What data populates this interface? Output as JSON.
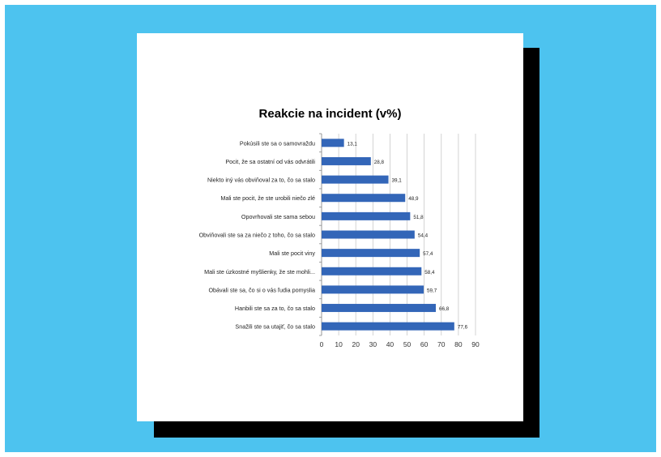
{
  "chart_data": {
    "type": "bar",
    "orientation": "horizontal",
    "title": "Reakcie na incident (v%)",
    "categories": [
      "Pokúsili ste sa o samovraždu",
      "Pocit, že sa ostatní od vás odvrátili",
      "Niekto iný vás obviňoval za to, čo sa stalo",
      "Mali ste pocit, že ste urobili niečo zlé",
      "Opovrhovali ste sama sebou",
      "Obviňovali ste sa za niečo z toho, čo sa stalo",
      "Mali ste pocit viny",
      "Mali ste úzkostné myšlienky, že ste mohli...",
      "Obávali ste sa, čo si o vás ľudia pomyslia",
      "Hanbili ste sa za to, čo sa stalo",
      "Snažili ste sa utajiť, čo sa stalo"
    ],
    "values": [
      13.1,
      28.8,
      39.1,
      48.9,
      51.8,
      54.4,
      57.4,
      58.4,
      59.7,
      66.8,
      77.6
    ],
    "value_labels": [
      "13,1",
      "28,8",
      "39,1",
      "48,9",
      "51,8",
      "54,4",
      "57,4",
      "58,4",
      "59,7",
      "66,8",
      "77,6"
    ],
    "xlim": [
      0,
      90
    ],
    "xticks": [
      "0",
      "10",
      "20",
      "30",
      "40",
      "50",
      "60",
      "70",
      "80",
      "90"
    ],
    "grid": true,
    "bar_color": "#3366b8"
  },
  "colors": {
    "frame_background": "#4dc3ef",
    "card_background": "#ffffff",
    "shadow": "#000000"
  }
}
